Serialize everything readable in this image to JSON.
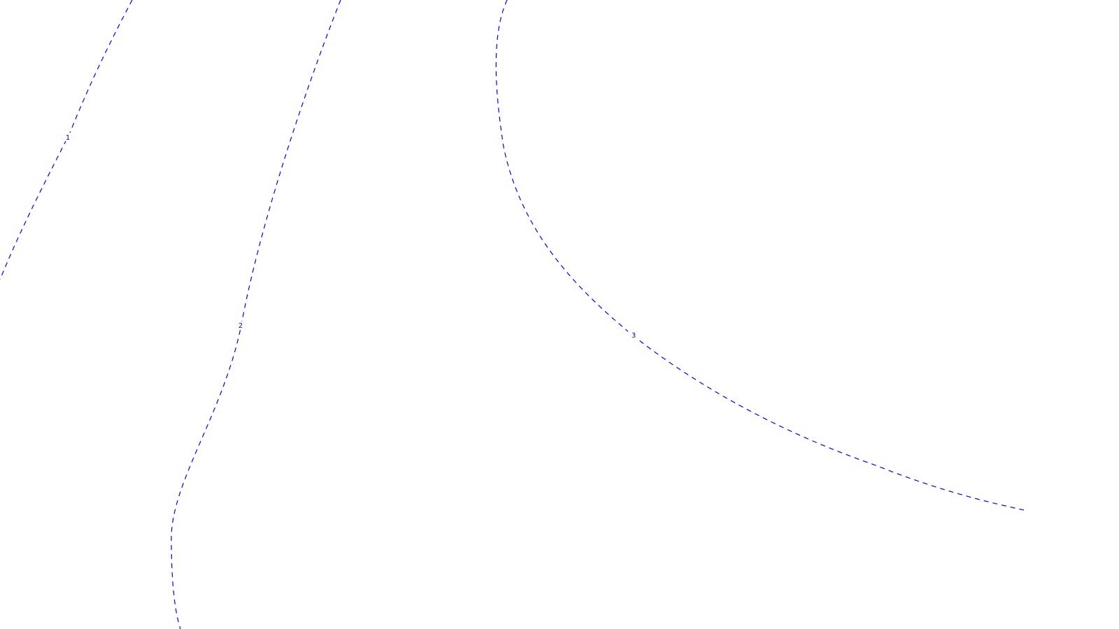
{
  "chart_data": {
    "type": "contour",
    "line_color": "#0000ff",
    "line_style": "dashed",
    "background_color": "#ffffff",
    "series": [
      {
        "level_label": "1"
      },
      {
        "level_label": "2"
      },
      {
        "level_label": "3"
      }
    ]
  }
}
